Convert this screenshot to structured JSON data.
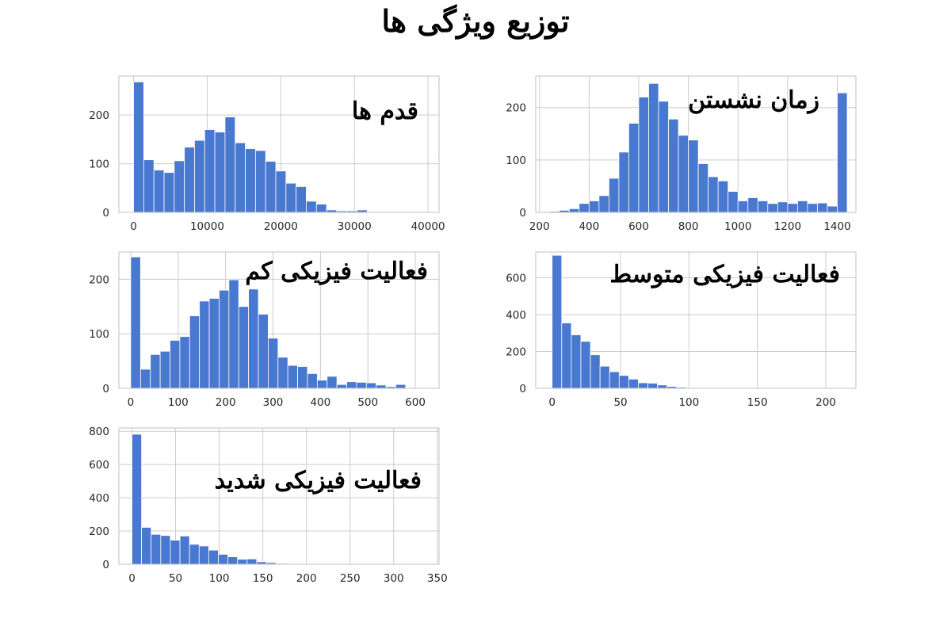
{
  "figure": {
    "title": "توزیع ویژگی ها"
  },
  "colors": {
    "bar": "#4878d0",
    "grid": "#cccccc",
    "background": "#ffffff"
  },
  "chart_data": [
    {
      "type": "bar",
      "title": "قدم ها",
      "grid": true,
      "xlim": [
        -2000,
        41500
      ],
      "ylim": [
        0,
        280
      ],
      "xticks": [
        0,
        10000,
        20000,
        30000,
        40000
      ],
      "yticks": [
        0,
        100,
        200
      ],
      "bin_start": 0,
      "bin_width": 1380,
      "values": [
        268,
        108,
        87,
        82,
        106,
        134,
        148,
        170,
        165,
        196,
        143,
        131,
        127,
        105,
        85,
        60,
        53,
        23,
        17,
        5,
        3,
        3,
        5,
        1,
        1,
        0,
        0,
        0,
        0,
        1
      ]
    },
    {
      "type": "bar",
      "title": "زمان نشستن",
      "grid": true,
      "xlim": [
        185,
        1475
      ],
      "ylim": [
        0,
        260
      ],
      "xticks": [
        200,
        400,
        600,
        800,
        1000,
        1200,
        1400
      ],
      "yticks": [
        0,
        100,
        200
      ],
      "bin_start": 240,
      "bin_width": 40,
      "values": [
        2,
        4,
        7,
        17,
        22,
        32,
        65,
        115,
        170,
        220,
        246,
        212,
        178,
        147,
        138,
        93,
        68,
        60,
        40,
        22,
        28,
        22,
        17,
        20,
        17,
        22,
        17,
        18,
        12,
        228
      ]
    },
    {
      "type": "bar",
      "title": "فعالیت فیزیکی کم",
      "grid": true,
      "xlim": [
        -25,
        650
      ],
      "ylim": [
        0,
        250
      ],
      "xticks": [
        0,
        100,
        200,
        300,
        400,
        500,
        600
      ],
      "yticks": [
        0,
        100,
        200
      ],
      "bin_start": 0,
      "bin_width": 20.7,
      "values": [
        241,
        35,
        62,
        68,
        88,
        95,
        133,
        160,
        165,
        180,
        199,
        150,
        182,
        136,
        92,
        57,
        42,
        40,
        27,
        15,
        22,
        7,
        12,
        11,
        10,
        6,
        3,
        7,
        1,
        1
      ]
    },
    {
      "type": "bar",
      "title": "فعالیت فیزیکی متوسط",
      "grid": true,
      "xlim": [
        -12,
        222
      ],
      "ylim": [
        0,
        740
      ],
      "xticks": [
        0,
        50,
        100,
        150,
        200
      ],
      "yticks": [
        0,
        200,
        400,
        600
      ],
      "bin_start": 0,
      "bin_width": 7,
      "values": [
        722,
        355,
        290,
        255,
        182,
        120,
        90,
        70,
        50,
        30,
        28,
        18,
        10,
        6,
        4,
        3,
        2,
        2,
        1,
        1,
        1,
        0,
        0,
        0,
        0,
        0,
        0,
        0,
        0,
        1
      ]
    },
    {
      "type": "bar",
      "title": "فعالیت فیزیکی شدید",
      "grid": true,
      "xlim": [
        -15,
        352
      ],
      "ylim": [
        0,
        820
      ],
      "xticks": [
        0,
        50,
        100,
        150,
        200,
        250,
        300,
        350
      ],
      "yticks": [
        0,
        200,
        400,
        600,
        800
      ],
      "bin_start": 0,
      "bin_width": 11,
      "values": [
        782,
        222,
        180,
        173,
        145,
        170,
        120,
        110,
        85,
        60,
        45,
        30,
        32,
        15,
        10,
        5,
        3,
        2,
        2,
        1,
        1,
        0,
        0,
        0,
        0,
        0,
        0,
        0,
        0,
        1
      ]
    }
  ]
}
